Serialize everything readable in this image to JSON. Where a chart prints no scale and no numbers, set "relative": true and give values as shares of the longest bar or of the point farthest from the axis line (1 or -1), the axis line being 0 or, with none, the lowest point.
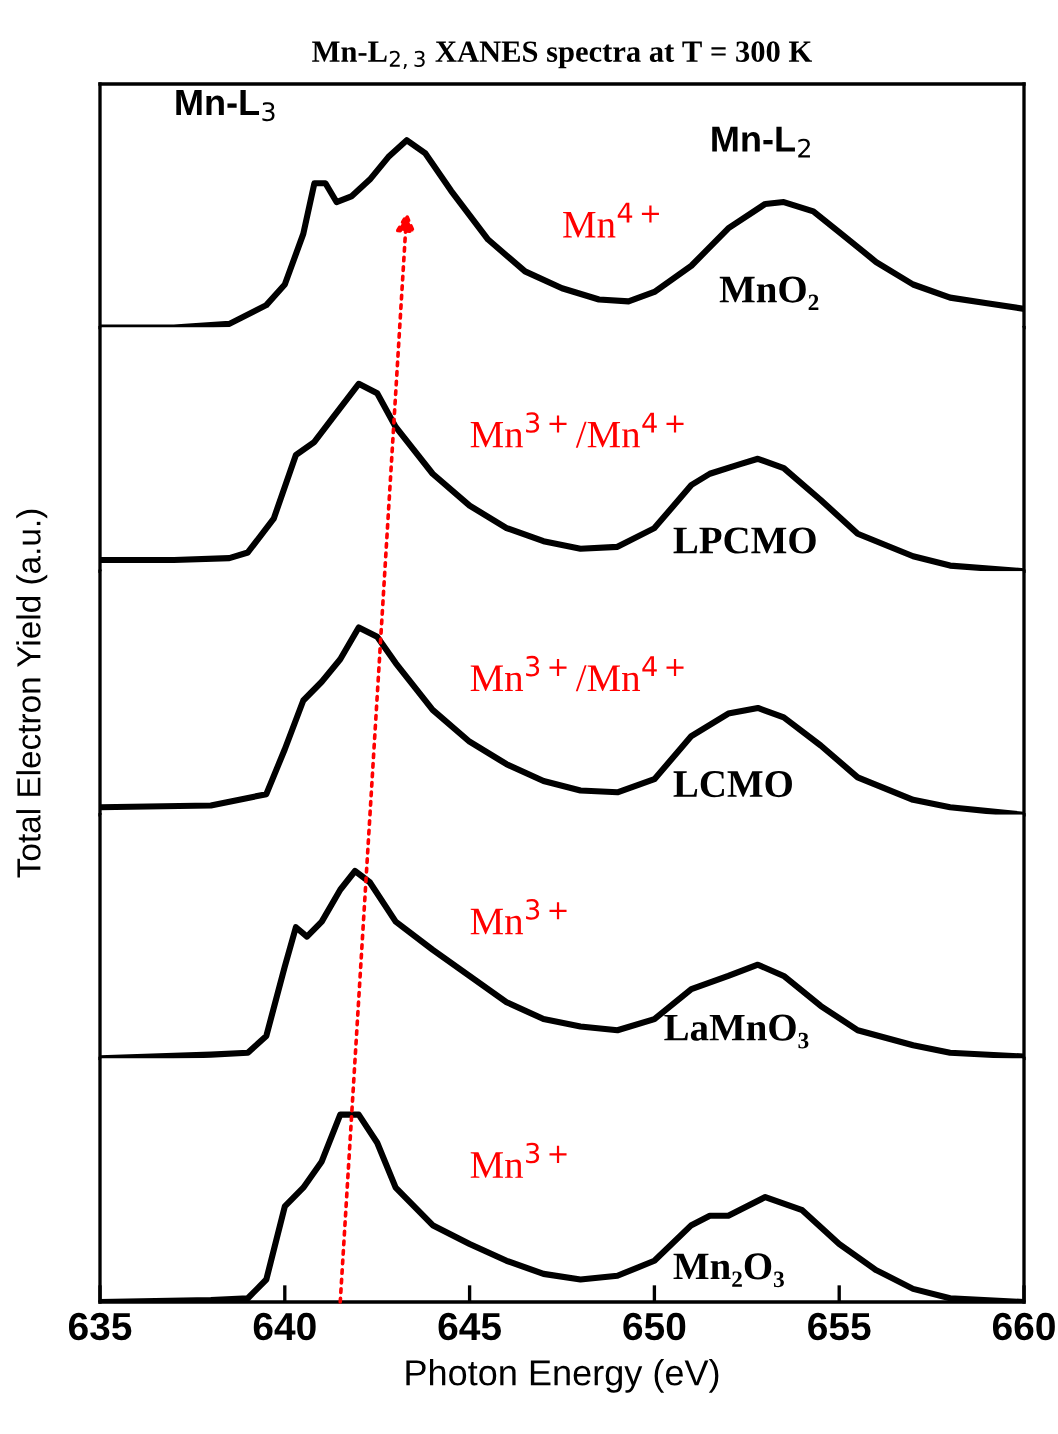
{
  "chart_data": [
    {
      "type": "line",
      "relative": true,
      "title": "Mn-L$_{2,3}$ XANES spectra at T = 300 K",
      "ylabel": "Total Electron Yield (a.u.)",
      "xlim": [
        635,
        660
      ],
      "tick_labels": false,
      "legend": false,
      "annotations": [
        "Mn-L$_{3}$",
        "Mn-L$_{2}$",
        "Mn$^{4+}$"
      ],
      "series": [
        {
          "name": "MnO₂",
          "color": "#000000",
          "x": [
            635,
            637,
            638.5,
            639.5,
            640,
            640.5,
            640.8,
            641.1,
            641.4,
            641.8,
            642.3,
            642.8,
            643.3,
            643.8,
            644.5,
            645.5,
            646.5,
            647.5,
            648.5,
            649.3,
            650,
            651,
            652,
            653,
            653.5,
            654.3,
            655,
            656,
            657,
            658,
            659,
            660
          ],
          "values": [
            0,
            0,
            0.02,
            0.12,
            0.23,
            0.5,
            0.77,
            0.77,
            0.67,
            0.7,
            0.79,
            0.91,
            1,
            0.93,
            0.73,
            0.47,
            0.3,
            0.21,
            0.15,
            0.14,
            0.19,
            0.33,
            0.53,
            0.66,
            0.67,
            0.62,
            0.51,
            0.35,
            0.23,
            0.16,
            0.13,
            0.1
          ]
        }
      ]
    },
    {
      "type": "line",
      "relative": true,
      "xlim": [
        635,
        660
      ],
      "tick_labels": false,
      "legend": false,
      "annotations": [
        "Mn$^{3+}$/Mn$^{4+}$"
      ],
      "series": [
        {
          "name": "LPCMO",
          "color": "#000000",
          "x": [
            635,
            637,
            638.5,
            639,
            639.7,
            640.3,
            640.8,
            641.3,
            642,
            642.5,
            643,
            644,
            645,
            646,
            647,
            648,
            649,
            650,
            651,
            651.5,
            652.3,
            652.8,
            653.5,
            654.5,
            655.5,
            657,
            658,
            660
          ],
          "values": [
            0.06,
            0.06,
            0.07,
            0.1,
            0.28,
            0.62,
            0.69,
            0.82,
            1,
            0.95,
            0.77,
            0.52,
            0.35,
            0.23,
            0.16,
            0.12,
            0.13,
            0.23,
            0.46,
            0.52,
            0.57,
            0.6,
            0.55,
            0.38,
            0.2,
            0.08,
            0.03,
            0
          ]
        }
      ]
    },
    {
      "type": "line",
      "relative": true,
      "xlim": [
        635,
        660
      ],
      "tick_labels": false,
      "legend": false,
      "annotations": [
        "Mn$^{3+}$/Mn$^{4+}$"
      ],
      "series": [
        {
          "name": "LCMO",
          "color": "#000000",
          "x": [
            635,
            638,
            639.5,
            640,
            640.5,
            641,
            641.5,
            642,
            642.5,
            643,
            644,
            645,
            646,
            647,
            648,
            649,
            650,
            651,
            652,
            652.8,
            653.5,
            654.5,
            655.5,
            657,
            658,
            660
          ],
          "values": [
            0.04,
            0.05,
            0.11,
            0.35,
            0.61,
            0.71,
            0.83,
            1,
            0.95,
            0.81,
            0.56,
            0.39,
            0.27,
            0.18,
            0.13,
            0.12,
            0.19,
            0.42,
            0.54,
            0.57,
            0.52,
            0.37,
            0.2,
            0.08,
            0.04,
            0
          ]
        }
      ]
    },
    {
      "type": "line",
      "relative": true,
      "xlim": [
        635,
        660
      ],
      "tick_labels": false,
      "legend": false,
      "annotations": [
        "Mn$^{3+}$"
      ],
      "series": [
        {
          "name": "LaMnO₃",
          "color": "#000000",
          "x": [
            635,
            638,
            639,
            639.5,
            640,
            640.3,
            640.6,
            641,
            641.5,
            641.9,
            642.3,
            643,
            644,
            645,
            646,
            647,
            648,
            649,
            650,
            651,
            652,
            652.8,
            653.5,
            654.5,
            655.5,
            657,
            658,
            660
          ],
          "values": [
            0,
            0.02,
            0.03,
            0.12,
            0.49,
            0.7,
            0.65,
            0.73,
            0.9,
            1,
            0.94,
            0.73,
            0.58,
            0.44,
            0.3,
            0.21,
            0.17,
            0.15,
            0.21,
            0.37,
            0.44,
            0.5,
            0.44,
            0.28,
            0.15,
            0.07,
            0.03,
            0.01
          ]
        }
      ]
    },
    {
      "type": "line",
      "relative": true,
      "xlabel": "Photon Energy (eV)",
      "xlim": [
        635,
        660
      ],
      "xticks": [
        635,
        640,
        645,
        650,
        655,
        660
      ],
      "tick_labels": "x",
      "legend": false,
      "annotations": [
        "Mn$^{3+}$"
      ],
      "series": [
        {
          "name": "Mn₂O₃",
          "color": "#000000",
          "x": [
            635,
            638,
            639,
            639.5,
            640,
            640.5,
            641,
            641.5,
            642,
            642.5,
            643,
            644,
            645,
            646,
            647,
            648,
            649,
            650,
            651,
            651.5,
            652,
            653,
            654,
            655,
            656,
            657,
            658,
            660
          ],
          "values": [
            0,
            0.01,
            0.02,
            0.12,
            0.51,
            0.61,
            0.75,
            1,
            1,
            0.85,
            0.61,
            0.41,
            0.31,
            0.22,
            0.15,
            0.12,
            0.14,
            0.22,
            0.41,
            0.46,
            0.46,
            0.56,
            0.49,
            0.31,
            0.17,
            0.07,
            0.02,
            0
          ]
        }
      ]
    }
  ]
}
